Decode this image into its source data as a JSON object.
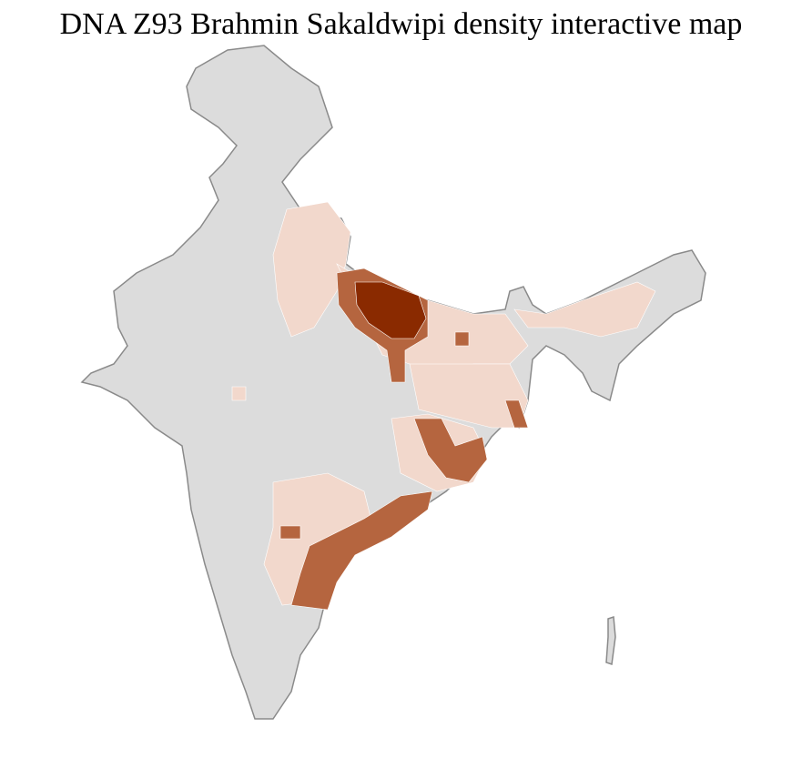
{
  "title": "DNA Z93 Brahmin Sakaldwipi density interactive map",
  "colors": {
    "background": "#ffffff",
    "no_data": "#dcdcdc",
    "border": "#8a8a8a",
    "district_lines": "#ffffff",
    "low_density": "#f2d8cc",
    "medium_density": "#b5653f",
    "high_density": "#8a2a00"
  }
}
